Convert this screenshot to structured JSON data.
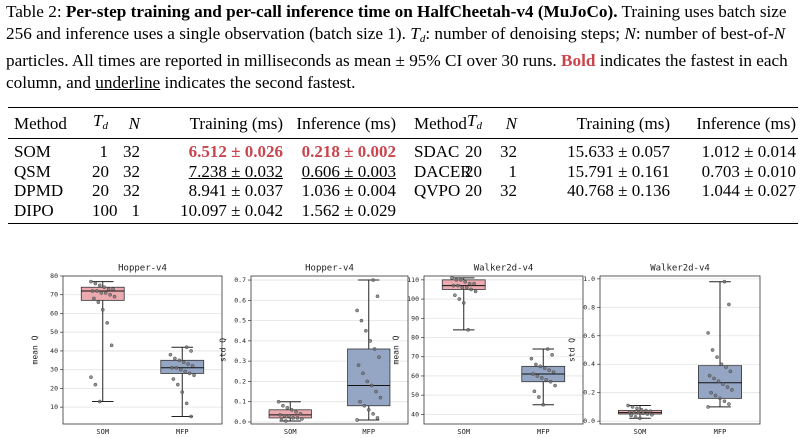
{
  "caption": {
    "segments": [
      "Table 2:",
      "Per-step training and per-call inference time on HalfCheetah-v4 (MuJoCo).",
      " Training uses batch size 256 and inference uses a single observation (batch size 1). ",
      "T",
      "d",
      ": number of denoising steps; ",
      "N",
      ": number of best-of-",
      "N",
      " particles. All times are reported in milliseconds as mean ± 95% CI over 30 runs. ",
      "Bold",
      " indicates the fastest in each column, and ",
      "underline",
      " indicates the second fastest."
    ]
  },
  "table": {
    "header": [
      "Method",
      {
        "main": "T",
        "sub": "d"
      },
      "N",
      "Training (ms)",
      "Inference (ms)"
    ],
    "left_rows": [
      [
        "SOM",
        1,
        32,
        "6.512 ± 0.026",
        "0.218 ± 0.002"
      ],
      [
        "QSM",
        20,
        32,
        "7.238 ± 0.032",
        "0.606 ± 0.003"
      ],
      [
        "DPMD",
        20,
        32,
        "8.941 ± 0.037",
        "1.036 ± 0.004"
      ],
      [
        "DIPO",
        100,
        1,
        "10.097 ± 0.042",
        "1.562 ± 0.029"
      ]
    ],
    "right_rows": [
      [
        "SDAC",
        20,
        32,
        "15.633 ± 0.057",
        "1.012 ± 0.014"
      ],
      [
        "DACER",
        20,
        1,
        "15.791 ± 0.161",
        "0.703 ± 0.010"
      ],
      [
        "QVPO",
        20,
        32,
        "40.768 ± 0.136",
        "1.044 ± 0.027"
      ]
    ]
  },
  "chart_data": [
    {
      "type": "box",
      "title": "Hopper-v4",
      "ylabel": "mean Q",
      "categories": [
        "SOM",
        "MFP"
      ],
      "ylim": [
        1,
        80
      ],
      "yticks": [
        10,
        20,
        30,
        40,
        50,
        60,
        70,
        80
      ],
      "grid": true,
      "boxes": [
        {
          "color": "#e8a1a6",
          "whislo": 13,
          "q1": 67,
          "med": 72,
          "q3": 74,
          "whishi": 77,
          "points": [
            77,
            76,
            75,
            74,
            73,
            73,
            72,
            72,
            71,
            71,
            70,
            69,
            68,
            66,
            62,
            55,
            43,
            26,
            22,
            13
          ]
        },
        {
          "color": "#8a9cbf",
          "whislo": 5,
          "q1": 28,
          "med": 31,
          "q3": 35,
          "whishi": 42,
          "points": [
            42,
            40,
            38,
            36,
            35,
            34,
            33,
            32,
            31,
            31,
            30,
            29,
            28,
            27,
            25,
            22,
            18,
            12,
            5
          ]
        }
      ]
    },
    {
      "type": "box",
      "title": "Hopper-v4",
      "ylabel": "std Q",
      "categories": [
        "SOM",
        "MFP"
      ],
      "ylim": [
        -0.01,
        0.72
      ],
      "yticks": [
        {
          "value": 0,
          "label": "0.0"
        },
        0.1,
        0.2,
        0.3,
        0.4,
        0.5,
        0.6,
        0.7
      ],
      "grid": true,
      "boxes": [
        {
          "color": "#e8a1a6",
          "whislo": 0.005,
          "q1": 0.02,
          "med": 0.035,
          "q3": 0.06,
          "whishi": 0.1,
          "points": [
            0.1,
            0.08,
            0.07,
            0.06,
            0.05,
            0.04,
            0.035,
            0.03,
            0.03,
            0.02,
            0.02,
            0.015,
            0.01,
            0.005
          ]
        },
        {
          "color": "#8a9cbf",
          "whislo": 0.01,
          "q1": 0.08,
          "med": 0.18,
          "q3": 0.36,
          "whishi": 0.7,
          "points": [
            0.7,
            0.62,
            0.55,
            0.5,
            0.45,
            0.4,
            0.36,
            0.32,
            0.28,
            0.24,
            0.2,
            0.18,
            0.15,
            0.12,
            0.1,
            0.08,
            0.06,
            0.04,
            0.02,
            0.01
          ]
        }
      ]
    },
    {
      "type": "box",
      "title": "Walker2d-v4",
      "ylabel": "mean Q",
      "categories": [
        "SOM",
        "MFP"
      ],
      "ylim": [
        35,
        112
      ],
      "yticks": [
        40,
        50,
        60,
        70,
        80,
        90,
        100,
        110
      ],
      "grid": true,
      "boxes": [
        {
          "color": "#e8a1a6",
          "whislo": 84,
          "q1": 105,
          "med": 107,
          "q3": 110,
          "whishi": 111,
          "points": [
            111,
            110,
            110,
            109,
            108,
            108,
            107,
            107,
            106,
            106,
            105,
            104,
            102,
            100,
            98,
            84
          ]
        },
        {
          "color": "#8a9cbf",
          "whislo": 45,
          "q1": 57,
          "med": 61,
          "q3": 65,
          "whishi": 74,
          "points": [
            74,
            71,
            69,
            66,
            65,
            64,
            63,
            62,
            61,
            60,
            59,
            58,
            57,
            55,
            52,
            49,
            45
          ]
        }
      ]
    },
    {
      "type": "box",
      "title": "Walker2d-v4",
      "ylabel": "std Q",
      "categories": [
        "SOM",
        "MFP"
      ],
      "ylim": [
        -0.02,
        1.02
      ],
      "yticks": [
        {
          "value": 0,
          "label": "0.0"
        },
        0.2,
        0.4,
        0.6,
        0.8,
        {
          "value": 1,
          "label": "1.0"
        }
      ],
      "grid": true,
      "boxes": [
        {
          "color": "#e8a1a6",
          "whislo": 0.02,
          "q1": 0.05,
          "med": 0.06,
          "q3": 0.075,
          "whishi": 0.11,
          "points": [
            0.11,
            0.1,
            0.09,
            0.08,
            0.075,
            0.07,
            0.065,
            0.06,
            0.06,
            0.055,
            0.05,
            0.045,
            0.04,
            0.03,
            0.02
          ]
        },
        {
          "color": "#8a9cbf",
          "whislo": 0.1,
          "q1": 0.16,
          "med": 0.27,
          "q3": 0.39,
          "whishi": 0.98,
          "points": [
            0.98,
            0.82,
            0.62,
            0.5,
            0.45,
            0.4,
            0.38,
            0.35,
            0.32,
            0.3,
            0.28,
            0.26,
            0.24,
            0.22,
            0.2,
            0.18,
            0.16,
            0.14,
            0.12,
            0.1
          ]
        }
      ]
    }
  ]
}
